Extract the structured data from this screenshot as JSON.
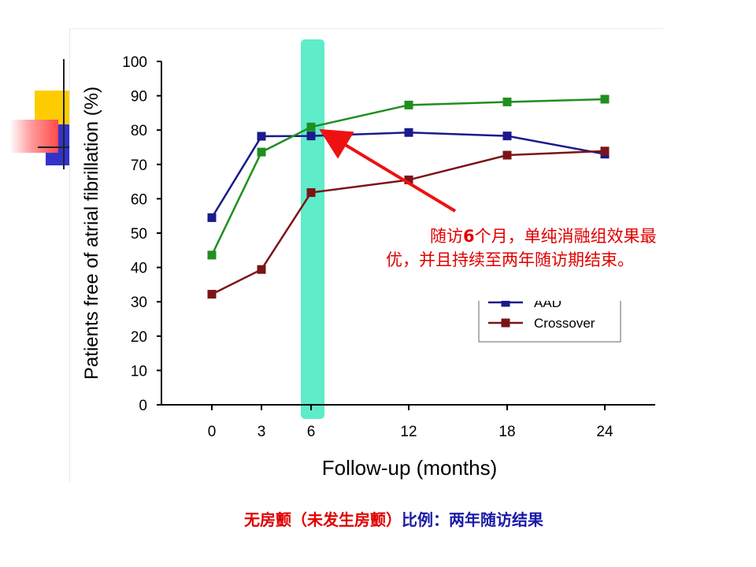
{
  "chart_data": {
    "type": "line",
    "xlabel": "Follow-up (months)",
    "ylabel": "Patients free of atrial fibrillation (%)",
    "x": [
      0,
      3,
      6,
      12,
      18,
      24
    ],
    "x_tick_labels": [
      "0",
      "3",
      "6",
      "12",
      "18",
      "24"
    ],
    "ylim": [
      0,
      100
    ],
    "y_tick_labels": [
      "0",
      "10",
      "20",
      "30",
      "40",
      "50",
      "60",
      "70",
      "80",
      "90",
      "100"
    ],
    "series": [
      {
        "name": "AAD",
        "color": "#1a1a8c",
        "values": [
          54.5,
          78.2,
          78.3,
          79.3,
          78.3,
          73.0
        ]
      },
      {
        "name": "",
        "color": "#1f8f1f",
        "values": [
          43.6,
          73.6,
          80.9,
          87.3,
          88.2,
          89.0
        ]
      },
      {
        "name": "Crossover",
        "color": "#7b1418",
        "values": [
          32.2,
          39.4,
          61.8,
          65.5,
          72.7,
          73.9
        ]
      }
    ],
    "highlight_x": 6,
    "highlight_color": "#5eecc9",
    "legend": {
      "placement": "bottom-right",
      "entries": [
        "AAD",
        "Crossover"
      ]
    },
    "grid": false
  },
  "annotation": {
    "text_before": "随访",
    "bold": "6",
    "text_after": "个月，单纯消融组效果最优，并且持续至两年随访期结束。",
    "color": "#e00000",
    "arrow_color": "#ee1111"
  },
  "caption": {
    "part_red": "无房颤（未发生房颤）",
    "part_blue": "比例：两年随访结果",
    "red_color": "#e00000",
    "blue_color": "#1a1aa6"
  },
  "decor": {
    "square_colors": [
      "#ffcc00",
      "#3333cc",
      "#ff5555"
    ]
  }
}
